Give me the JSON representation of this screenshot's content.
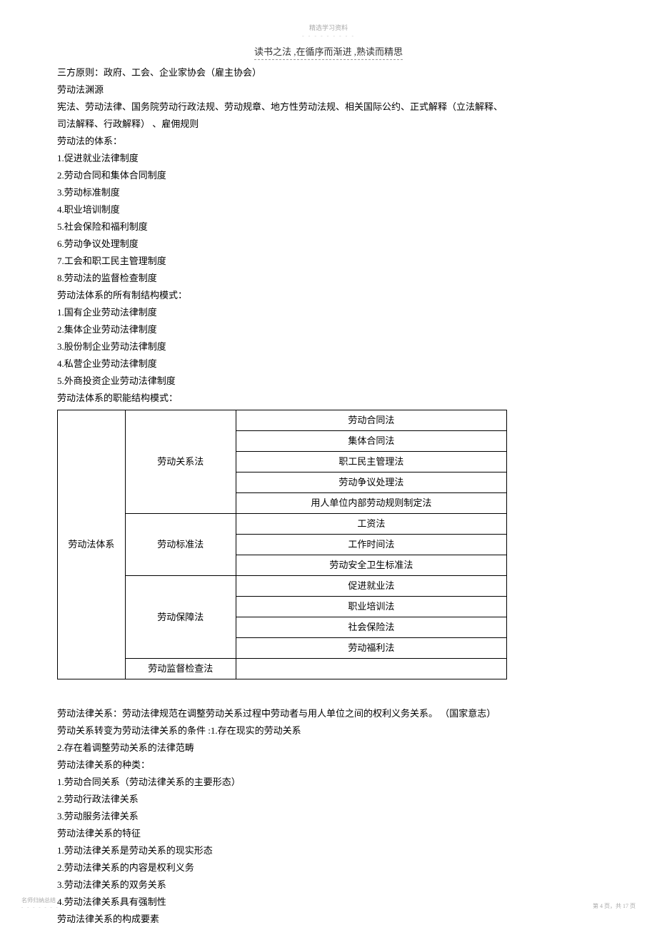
{
  "watermark": {
    "top": "精选学习资料",
    "top_dash": "- - - - - - - - -",
    "header": "读书之法 ,在循序而渐进  ,熟读而精思",
    "footer_left": "名师归纳总结",
    "footer_left_dash": "- - - - - - -",
    "footer_right": "第 4 页，共 17 页"
  },
  "lines": {
    "l1": "三方原则：政府、工会、企业家协会（雇主协会）",
    "l2": "劳动法渊源",
    "l3": "宪法、劳动法律、国务院劳动行政法规、劳动规章、地方性劳动法规、相关国际公约、正式解释（立法解释、",
    "l4": "司法解释、行政解释） 、雇佣规则",
    "l5": "劳动法的体系：",
    "l6": "1.促进就业法律制度",
    "l7": "2.劳动合同和集体合同制度",
    "l8": "3.劳动标准制度",
    "l9": "4.职业培训制度",
    "l10": "5.社会保险和福利制度",
    "l11": "6.劳动争议处理制度",
    "l12": "7.工会和职工民主管理制度",
    "l13": "8.劳动法的监督检查制度",
    "l14": "劳动法体系的所有制结构模式：",
    "l15": "1.国有企业劳动法律制度",
    "l16": "2.集体企业劳动法律制度",
    "l17": "3.股份制企业劳动法律制度",
    "l18": "4.私营企业劳动法律制度",
    "l19": "5.外商投资企业劳动法律制度",
    "l20": "劳动法体系的职能结构模式："
  },
  "table": {
    "col1": "劳动法体系",
    "group1_head": "劳动关系法",
    "g1r1": "劳动合同法",
    "g1r2": "集体合同法",
    "g1r3": "职工民主管理法",
    "g1r4": "劳动争议处理法",
    "g1r5": "用人单位内部劳动规则制定法",
    "group2_head": "劳动标准法",
    "g2r1": "工资法",
    "g2r2": "工作时间法",
    "g2r3": "劳动安全卫生标准法",
    "group3_head": "劳动保障法",
    "g3r1": "促进就业法",
    "g3r2": "职业培训法",
    "g3r3": "社会保险法",
    "g3r4": "劳动福利法",
    "group4_head": "劳动监督检查法",
    "g4r1": ""
  },
  "after": {
    "a1": "劳动法律关系：劳动法律规范在调整劳动关系过程中劳动者与用人单位之间的权利义务关系。 （国家意志）",
    "a2": "劳动关系转变为劳动法律关系的条件      :1.存在现实的劳动关系",
    "a3": "2.存在着调整劳动关系的法律范畴",
    "a4": "劳动法律关系的种类：",
    "a5": "1.劳动合同关系（劳动法律关系的主要形态）",
    "a6": "2.劳动行政法律关系",
    "a7": "3.劳动服务法律关系",
    "a8": "劳动法律关系的特征",
    "a9": "1.劳动法律关系是劳动关系的现实形态",
    "a10": "2.劳动法律关系的内容是权利义务",
    "a11": "3.劳动法律关系的双务关系",
    "a12": "4.劳动法律关系具有强制性",
    "a13": "劳动法律关系的构成要素"
  }
}
